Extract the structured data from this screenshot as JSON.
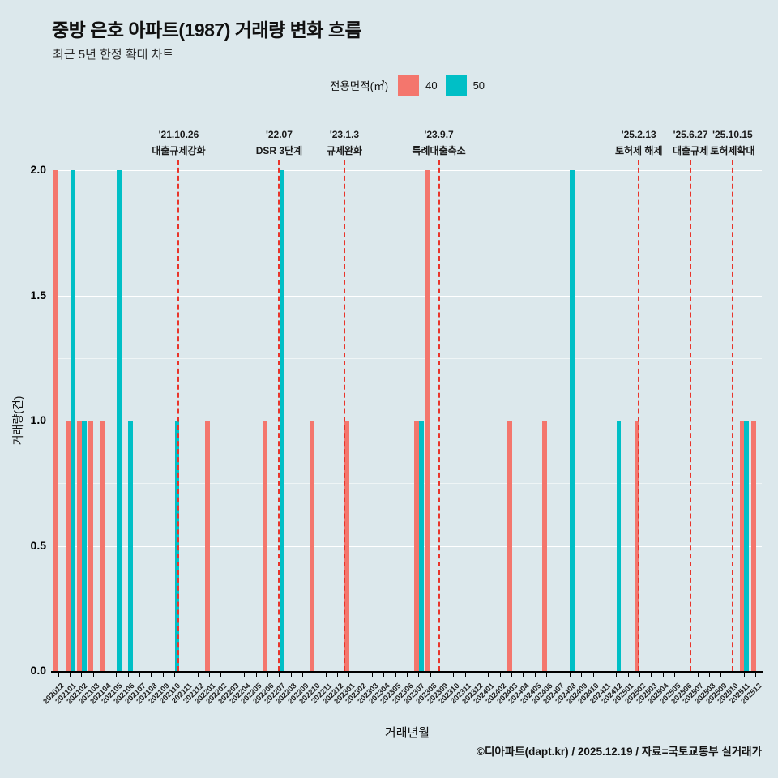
{
  "header": {
    "title": "중방 은호 아파트(1987) 거래량 변화 흐름",
    "subtitle": "최근 5년 한정 확대 차트"
  },
  "legend": {
    "label": "전용면적(㎡)",
    "items": [
      {
        "name": "40",
        "color": "#f4766d"
      },
      {
        "name": "50",
        "color": "#00bfc6"
      }
    ]
  },
  "footer": "©디아파트(dapt.kr) / 2025.12.19 / 자료=국토교통부 실거래가",
  "chart_data": {
    "type": "bar",
    "title": "중방 은호 아파트(1987) 거래량 변화 흐름",
    "xlabel": "거래년월",
    "ylabel": "거래량(건)",
    "ylim": [
      0,
      2.0
    ],
    "yticks": [
      0.0,
      0.5,
      1.0,
      1.5,
      2.0
    ],
    "grid": "on",
    "legend_position": "top-center",
    "categories": [
      "202012",
      "202101",
      "202102",
      "202103",
      "202104",
      "202105",
      "202106",
      "202107",
      "202108",
      "202109",
      "202110",
      "202111",
      "202112",
      "202201",
      "202202",
      "202203",
      "202204",
      "202205",
      "202206",
      "202207",
      "202208",
      "202209",
      "202210",
      "202211",
      "202212",
      "202301",
      "202302",
      "202303",
      "202304",
      "202305",
      "202306",
      "202307",
      "202308",
      "202309",
      "202310",
      "202311",
      "202312",
      "202401",
      "202402",
      "202403",
      "202404",
      "202405",
      "202406",
      "202407",
      "202408",
      "202409",
      "202410",
      "202411",
      "202412",
      "202501",
      "202502",
      "202503",
      "202504",
      "202505",
      "202506",
      "202507",
      "202508",
      "202509",
      "202510",
      "202511",
      "202512"
    ],
    "series": [
      {
        "name": "40",
        "color": "#f4766d",
        "values": [
          2,
          1,
          1,
          1,
          1,
          0,
          0,
          0,
          0,
          0,
          0,
          0,
          0,
          1,
          0,
          0,
          0,
          0,
          1,
          0,
          0,
          0,
          1,
          0,
          0,
          1,
          0,
          0,
          0,
          0,
          0,
          1,
          2,
          0,
          0,
          0,
          0,
          0,
          0,
          1,
          0,
          0,
          1,
          0,
          0,
          0,
          0,
          0,
          0,
          0,
          1,
          0,
          0,
          0,
          0,
          0,
          0,
          0,
          0,
          1,
          1
        ]
      },
      {
        "name": "50",
        "color": "#00bfc6",
        "values": [
          0,
          2,
          1,
          0,
          0,
          2,
          1,
          0,
          0,
          0,
          1,
          0,
          0,
          0,
          0,
          0,
          0,
          0,
          0,
          2,
          0,
          0,
          0,
          0,
          0,
          0,
          0,
          0,
          0,
          0,
          0,
          1,
          0,
          0,
          0,
          0,
          0,
          0,
          0,
          0,
          0,
          0,
          0,
          0,
          2,
          0,
          0,
          0,
          1,
          0,
          0,
          0,
          0,
          0,
          0,
          0,
          0,
          0,
          0,
          1,
          0
        ]
      }
    ],
    "annotations": [
      {
        "date": "'21.10.26",
        "label": "대출규제강화",
        "month": "202110",
        "day": 26
      },
      {
        "date": "'22.07",
        "label": "DSR 3단계",
        "month": "202207",
        "day": 15
      },
      {
        "date": "'23.1.3",
        "label": "규제완화",
        "month": "202301",
        "day": 3
      },
      {
        "date": "'23.9.7",
        "label": "특례대출축소",
        "month": "202309",
        "day": 7
      },
      {
        "date": "'25.2.13",
        "label": "토허제 해제",
        "month": "202502",
        "day": 13
      },
      {
        "date": "'25.6.27",
        "label": "대출규제",
        "month": "202506",
        "day": 27
      },
      {
        "date": "'25.10.15",
        "label": "토허제확대",
        "month": "202510",
        "day": 15
      }
    ]
  }
}
